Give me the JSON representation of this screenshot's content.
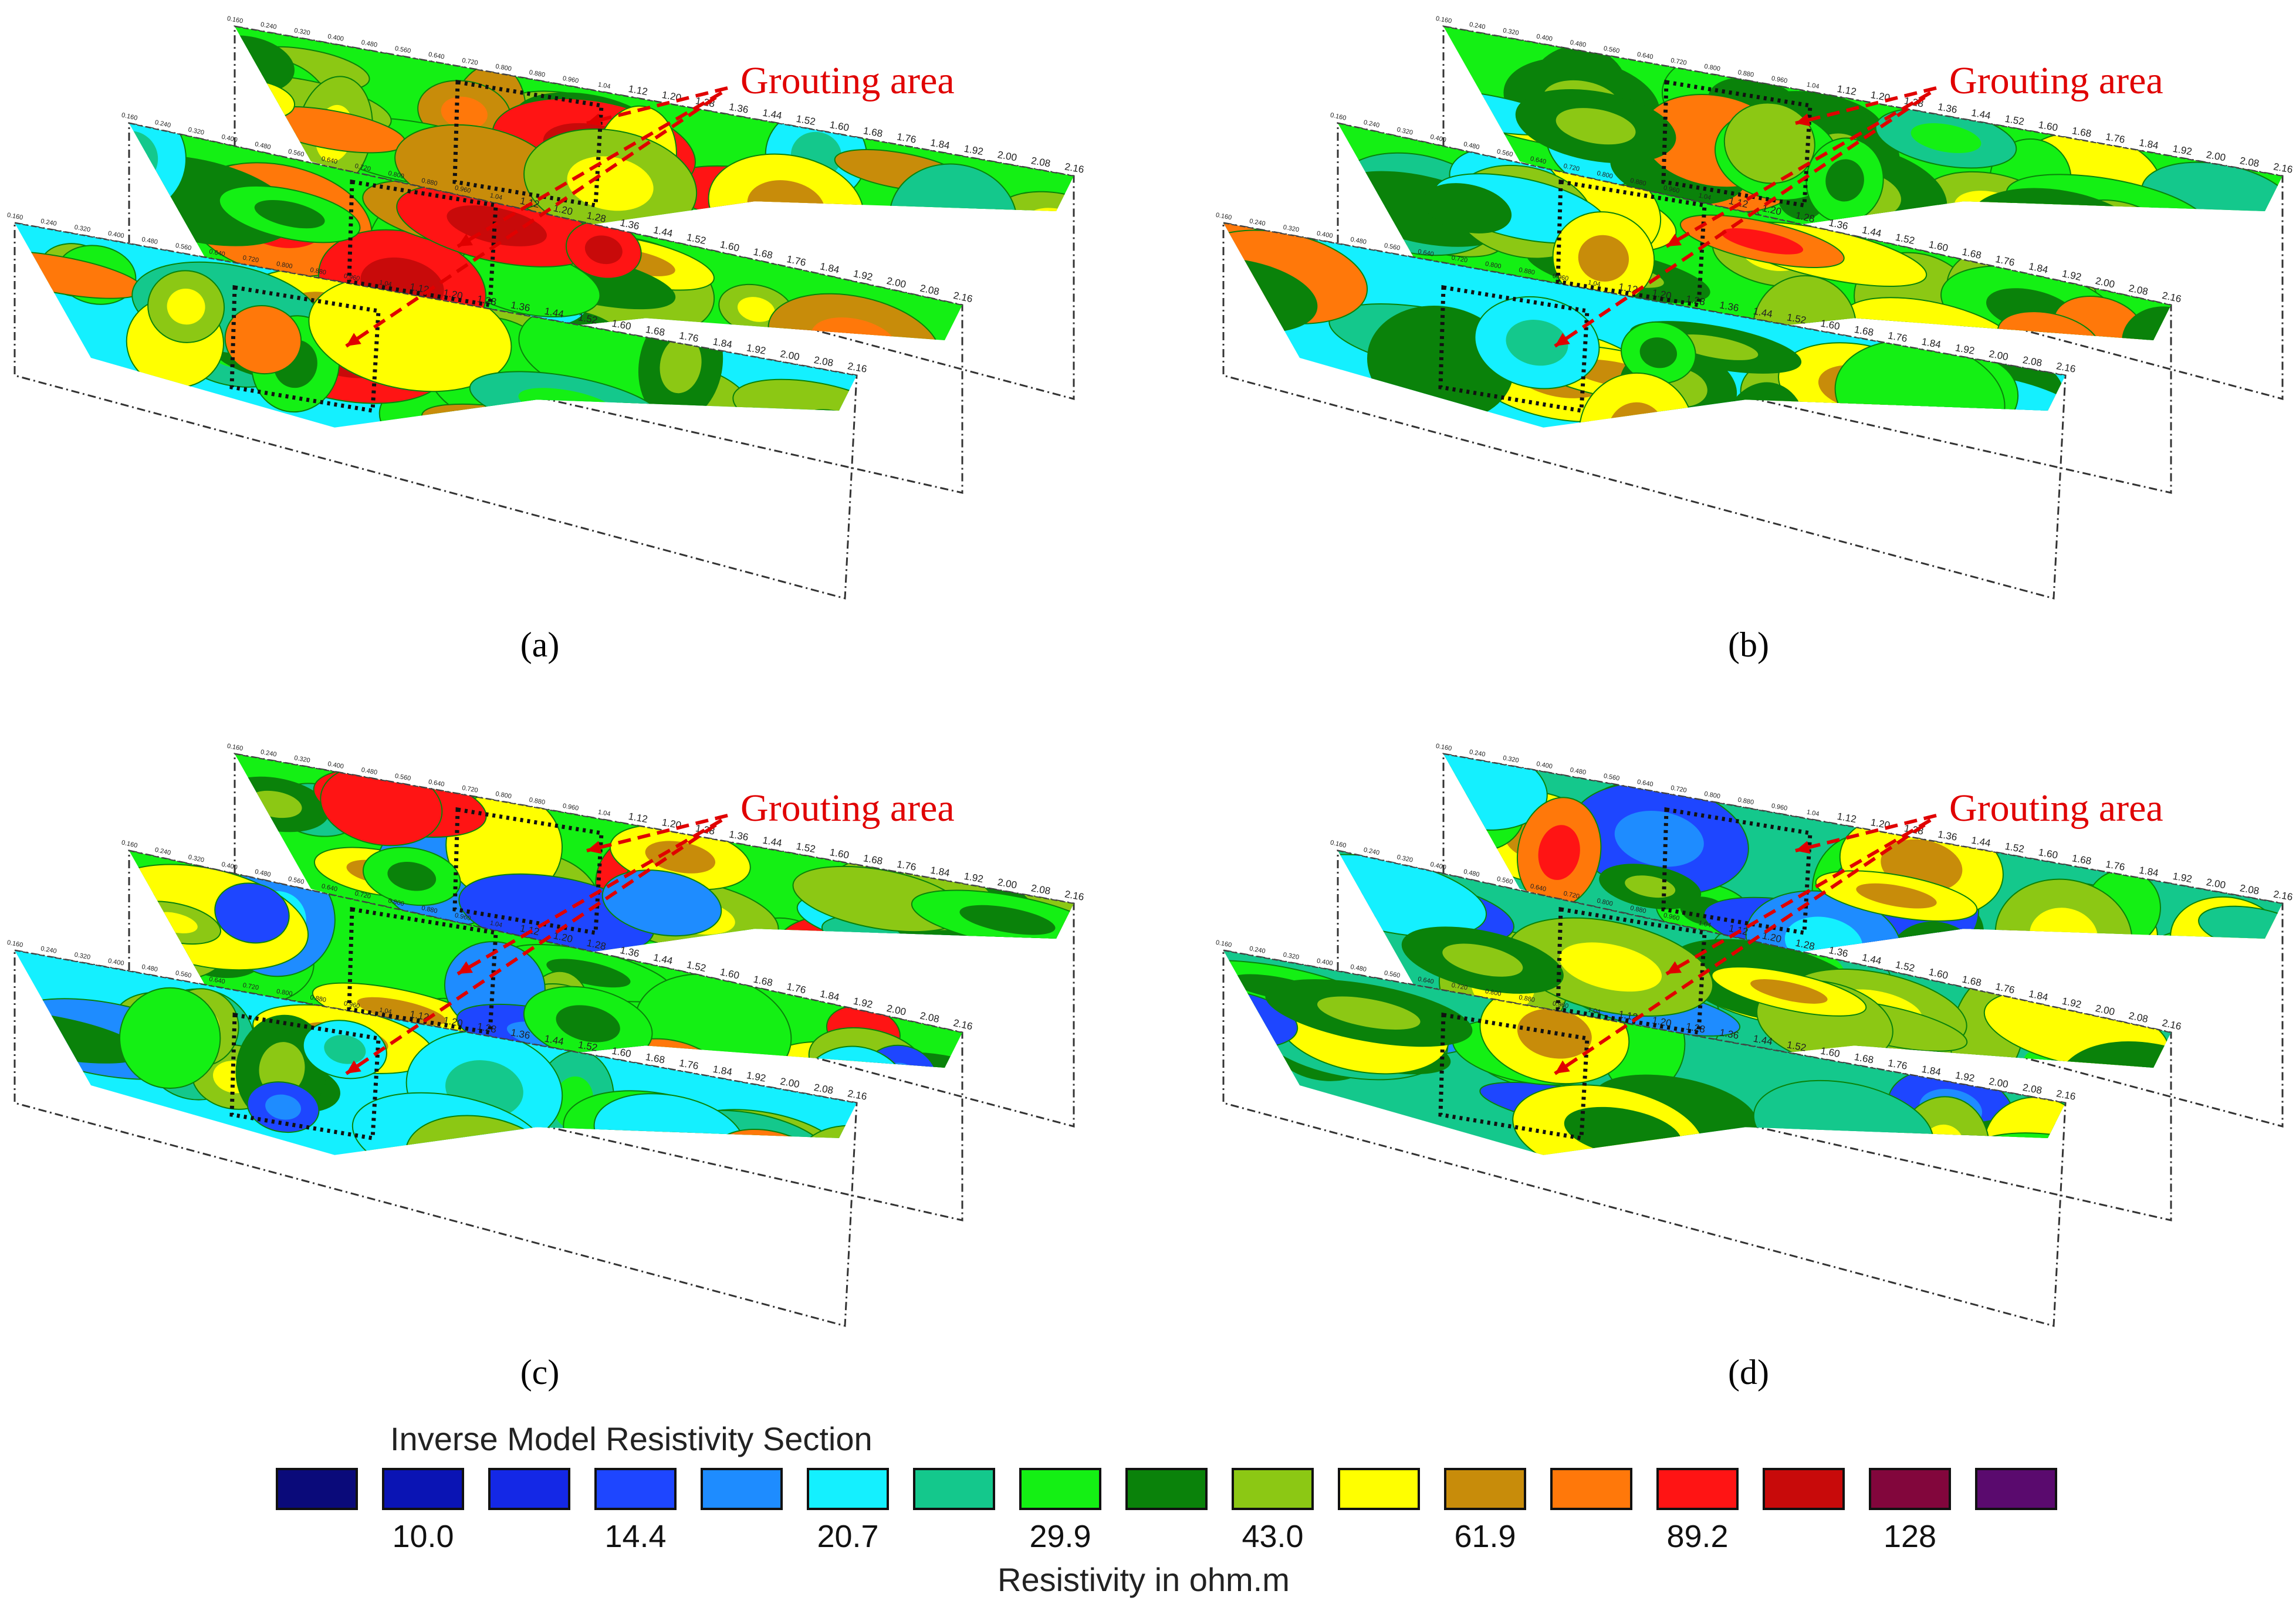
{
  "figure": {
    "panels": [
      {
        "label": "(a)",
        "annotation": "Grouting area"
      },
      {
        "label": "(b)",
        "annotation": "Grouting area"
      },
      {
        "label": "(c)",
        "annotation": "Grouting area"
      },
      {
        "label": "(d)",
        "annotation": "Grouting area"
      }
    ],
    "profile_ticks": [
      "0.160",
      "0.240",
      "0.320",
      "0.400",
      "0.480",
      "0.560",
      "0.640",
      "0.720",
      "0.800",
      "0.880",
      "0.960",
      "1.04",
      "1.12",
      "1.20",
      "1.28",
      "1.36",
      "1.44",
      "1.52",
      "1.60",
      "1.68",
      "1.76",
      "1.84",
      "1.92",
      "2.00",
      "2.08",
      "2.16"
    ]
  },
  "legend": {
    "title": "Inverse Model Resistivity Section",
    "unit_label": "Resistivity in ohm.m",
    "colors": [
      "#0a0a7a",
      "#0a14b4",
      "#1428e6",
      "#1e46ff",
      "#1e8cff",
      "#14f0ff",
      "#14c88c",
      "#14f014",
      "#0a820a",
      "#8cc814",
      "#ffff00",
      "#c88c0a",
      "#ff780a",
      "#ff1414",
      "#c80a0a",
      "#82063c",
      "#5a0a6e"
    ],
    "tick_labels": [
      "10.0",
      "14.4",
      "20.7",
      "29.9",
      "43.0",
      "61.9",
      "89.2",
      "128"
    ]
  },
  "chart_data": {
    "type": "heatmap",
    "title": "Inverse Model Resistivity Section",
    "legend_scale_ohm_m": [
      10.0,
      14.4,
      20.7,
      29.9,
      43.0,
      61.9,
      89.2,
      128
    ],
    "unit": "ohm.m",
    "profile_distance_ticks": [
      0.16,
      0.24,
      0.32,
      0.4,
      0.48,
      0.56,
      0.64,
      0.72,
      0.8,
      0.88,
      0.96,
      1.04,
      1.12,
      1.2,
      1.28,
      1.36,
      1.44,
      1.52,
      1.6,
      1.68,
      1.76,
      1.84,
      1.92,
      2.0,
      2.08,
      2.16
    ],
    "panels": [
      "(a)",
      "(b)",
      "(c)",
      "(d)"
    ],
    "sections_per_panel": 3
  }
}
